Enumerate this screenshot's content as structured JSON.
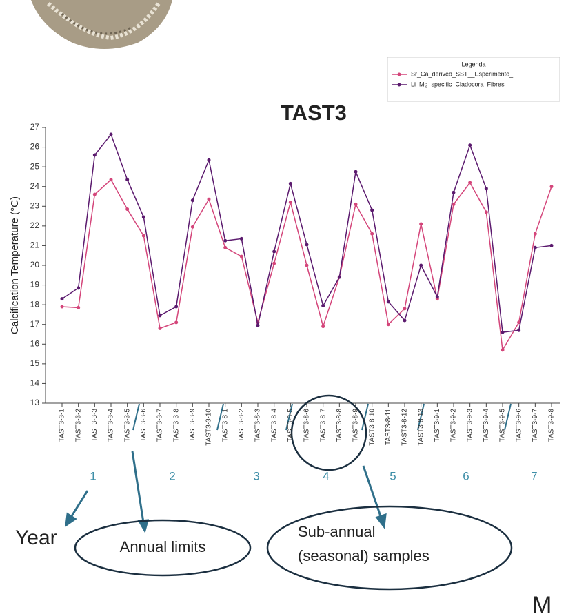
{
  "chart_data": {
    "type": "line",
    "title": "TAST3",
    "y_label": "Calcification Temperature (°C)",
    "legend_title": "Legenda",
    "categories": [
      "TAST3-3-1",
      "TAST3-3-2",
      "TAST3-3-3",
      "TAST3-3-4",
      "TAST3-3-5",
      "TAST3-3-6",
      "TAST3-3-7",
      "TAST3-3-8",
      "TAST3-3-9",
      "TAST3-3-10",
      "TAST3-8-1",
      "TAST3-8-2",
      "TAST3-8-3",
      "TAST3-8-4",
      "TAST3-8-5",
      "TAST3-8-6",
      "TAST3-8-7",
      "TAST3-8-8",
      "TAST3-8-9",
      "TAST3-8-10",
      "TAST3-8-11",
      "TAST3-8-12",
      "TAST3-8-13",
      "TAST3-9-1",
      "TAST3-9-2",
      "TAST3-9-3",
      "TAST3-9-4",
      "TAST3-9-5",
      "TAST3-9-6",
      "TAST3-9-7",
      "TAST3-9-8"
    ],
    "series": [
      {
        "name": "Sr_Ca_derived_SST__Esperimento_",
        "color": "#d4457a",
        "values": [
          17.9,
          17.85,
          23.6,
          24.35,
          22.85,
          21.5,
          16.8,
          17.1,
          21.95,
          23.35,
          20.9,
          20.45,
          17.1,
          20.1,
          23.2,
          20.0,
          16.9,
          19.4,
          23.1,
          21.6,
          17.0,
          17.8,
          22.1,
          18.3,
          23.1,
          24.2,
          22.7,
          15.7,
          17.1,
          21.6,
          24.0
        ]
      },
      {
        "name": "Li_Mg_specific_Cladocora_Fibres",
        "color": "#5b1a6e",
        "values": [
          18.3,
          18.85,
          25.6,
          26.65,
          24.35,
          22.45,
          17.45,
          17.9,
          23.3,
          25.35,
          21.25,
          21.35,
          16.95,
          20.7,
          24.15,
          21.05,
          17.95,
          19.4,
          24.75,
          22.8,
          18.15,
          17.2,
          20.0,
          18.4,
          23.7,
          26.1,
          23.9,
          16.6,
          16.7,
          20.9,
          21.0
        ]
      }
    ],
    "ylim": [
      13,
      27
    ],
    "yticks": [
      13,
      14,
      15,
      16,
      17,
      18,
      19,
      20,
      21,
      22,
      23,
      24,
      25,
      26,
      27
    ],
    "years": [
      1,
      2,
      3,
      4,
      5,
      6,
      7
    ],
    "annotations": {
      "year": "Year",
      "annual_limits": "Annual limits",
      "sub_annual_1": "Sub-annual",
      "sub_annual_2": "(seasonal) samples",
      "corner": "M"
    }
  }
}
